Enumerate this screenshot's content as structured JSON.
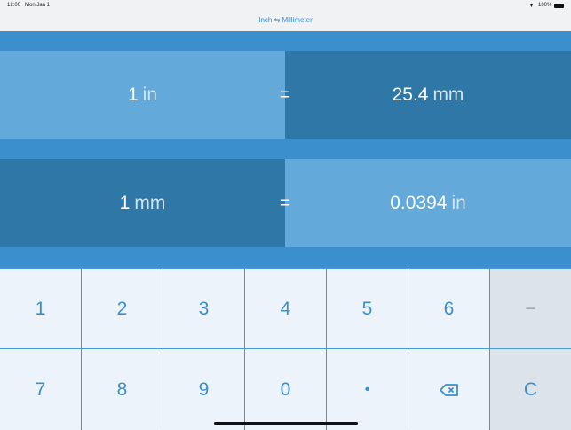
{
  "status": {
    "time": "12:00",
    "date": "Mon Jan 1",
    "battery": "100%"
  },
  "nav": {
    "title": "Inch ⇆ Millimeter"
  },
  "row1": {
    "left_value": "1",
    "left_unit": "in",
    "equals": "=",
    "right_value": "25.4",
    "right_unit": "mm"
  },
  "row2": {
    "left_value": "1",
    "left_unit": "mm",
    "equals": "=",
    "right_value": "0.0394",
    "right_unit": "in"
  },
  "keypad": {
    "keys": [
      "1",
      "2",
      "3",
      "4",
      "5",
      "6",
      "−",
      "7",
      "8",
      "9",
      "0",
      "•",
      "⌫",
      "C"
    ]
  },
  "colors": {
    "accent": "#3b8fcc",
    "light_panel": "#63a9d9",
    "dark_panel": "#2f77a6"
  }
}
